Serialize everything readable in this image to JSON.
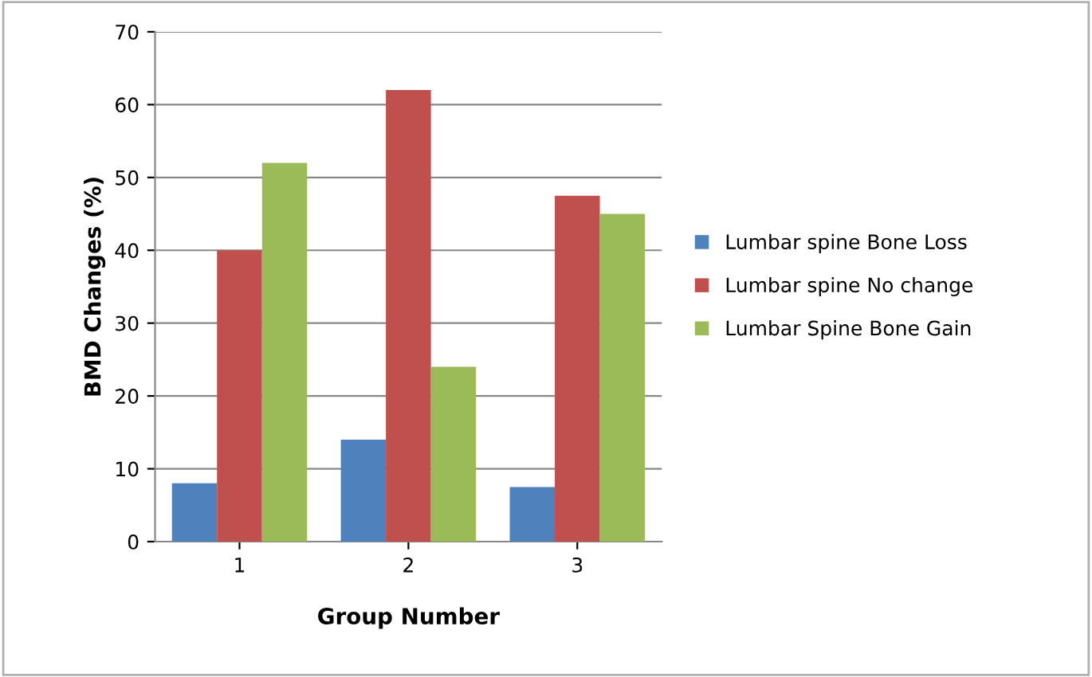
{
  "chart_data": {
    "type": "bar",
    "xlabel": "Group Number",
    "ylabel": "BMD Changes (%)",
    "categories": [
      "1",
      "2",
      "3"
    ],
    "series": [
      {
        "name": "Lumbar spine Bone Loss",
        "color": "#4f81bd",
        "values": [
          8,
          14,
          7.5
        ]
      },
      {
        "name": "Lumbar spine No change",
        "color": "#c0504d",
        "values": [
          40,
          62,
          47.5
        ]
      },
      {
        "name": "Lumbar Spine Bone Gain",
        "color": "#9bbb59",
        "values": [
          52,
          24,
          45
        ]
      }
    ],
    "ylim": [
      0,
      70
    ],
    "yticks": [
      0,
      10,
      20,
      30,
      40,
      50,
      60,
      70
    ],
    "grid": "y",
    "legend": "right"
  }
}
